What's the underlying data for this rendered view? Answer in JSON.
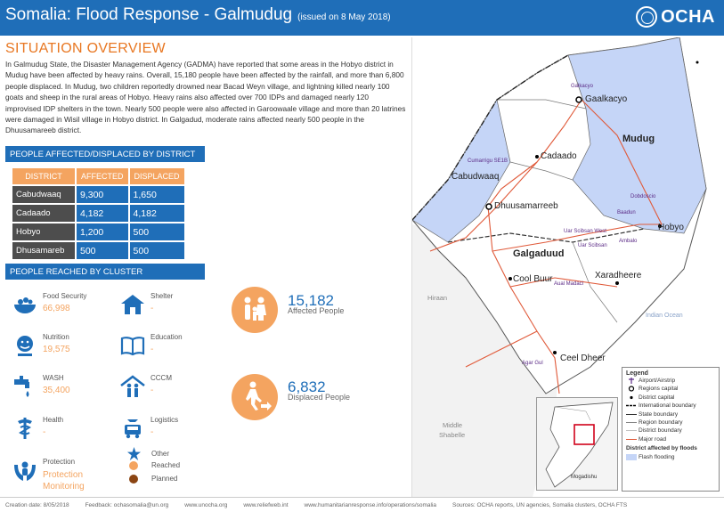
{
  "header": {
    "title": "Somalia: Flood Response - Galmudug",
    "issued": "(issued on 8 May 2018)",
    "logo_text": "OCHA"
  },
  "overview": {
    "title": "SITUATION OVERVIEW",
    "text": "In Galmudug State, the Disaster Management Agency (GADMA) have reported that some areas in the Hobyo district in Mudug have been affected by heavy rains. Overall, 15,180 people have been affected by the rainfall, and more than 6,800 people displaced. In Mudug, two children reportedly drowned near Bacad Weyn village, and lightning killed nearly 100 goats and sheep in the rural areas of Hobyo. Heavy rains also affected over 700 IDPs and damaged nearly 120 improvised IDP shelters in the town. Nearly 500 people were also affected in Garoowaale village and more than 20 latrines were damaged in Wisil village in Hobyo district. In Galgadud, moderate rains affected nearly 500 people in the Dhuusamareeb district."
  },
  "district_section": {
    "title": "PEOPLE AFFECTED/DISPLACED BY DISTRICT",
    "columns": [
      "DISTRICT",
      "AFFECTED",
      "DISPLACED"
    ],
    "rows": [
      {
        "district": "Cabudwaaq",
        "affected": "9,300",
        "displaced": "1,650"
      },
      {
        "district": "Cadaado",
        "affected": "4,182",
        "displaced": "4,182"
      },
      {
        "district": "Hobyo",
        "affected": "1,200",
        "displaced": "500"
      },
      {
        "district": "Dhusamareb",
        "affected": "500",
        "displaced": "500"
      }
    ]
  },
  "cluster_section": {
    "title": "PEOPLE REACHED BY CLUSTER",
    "clusters": [
      {
        "name": "Food Security",
        "value": "66,998",
        "icon": "food-security-icon"
      },
      {
        "name": "Shelter",
        "value": "-",
        "icon": "shelter-icon"
      },
      {
        "name": "Nutrition",
        "value": "19,575",
        "icon": "nutrition-icon"
      },
      {
        "name": "Education",
        "value": "-",
        "icon": "education-icon"
      },
      {
        "name": "WASH",
        "value": "35,400",
        "icon": "wash-icon"
      },
      {
        "name": "CCCM",
        "value": "-",
        "icon": "cccm-icon"
      },
      {
        "name": "Health",
        "value": "-",
        "icon": "health-icon"
      },
      {
        "name": "Logistics",
        "value": "-",
        "icon": "logistics-icon"
      },
      {
        "name": "Protection",
        "value": "Protection Monitoring",
        "icon": "protection-icon"
      },
      {
        "name": "Other",
        "value": "",
        "icon": "star-icon"
      }
    ],
    "legend": {
      "reached": "Reached",
      "planned": "Planned"
    }
  },
  "key_figures": {
    "affected": {
      "value": "15,182",
      "label": "Affected People"
    },
    "displaced": {
      "value": "6,832",
      "label": "Displaced People"
    }
  },
  "map": {
    "regions": {
      "mudug": "Mudug",
      "galgaduud": "Galgaduud"
    },
    "capitals": [
      "Gaalkacyo",
      "Dhuusamarreeb"
    ],
    "districts": [
      "Cadaado",
      "Cabudwaaq",
      "Hobyo",
      "Cool Buur",
      "Xaradheere",
      "Ceel Dheer"
    ],
    "small_labels": [
      "Galkacyo",
      "Cumarrigu SE1B",
      "Dobdoscio",
      "Baadun",
      "Uar Scibsan West",
      "Uar Scibsan",
      "Ambalo",
      "Aual Madaci",
      "Agar Gul"
    ],
    "grey_labels": {
      "hiraan": "Hiraan",
      "middle_shabelle_1": "Middle",
      "middle_shabelle_2": "Shabelle",
      "mogadishu": "Mogadishu"
    },
    "sea_label": "Indian Ocean",
    "legend": {
      "title": "Legend",
      "items": [
        "Airport/Airstrip",
        "Regions capital",
        "District capital",
        "International boundary",
        "State boundary",
        "Region boundary",
        "District boundary",
        "Major road"
      ],
      "flood_title": "District affected by floods",
      "flood_item": "Flash flooding"
    },
    "colors": {
      "flood": "#c5d5f7",
      "road": "#e05a3a",
      "boundary": "#444444"
    }
  },
  "footer": {
    "creation": "Creation date: 8/05/2018",
    "feedback": "Feedback: ochasomalia@un.org",
    "site1": "www.unocha.org",
    "site2": "www.reliefweb.int",
    "site3": "www.humanitarianresponse.info/operations/somalia",
    "sources": "Sources: OCHA reports, UN agencies,   Somalia clusters,   OCHA FTS"
  }
}
